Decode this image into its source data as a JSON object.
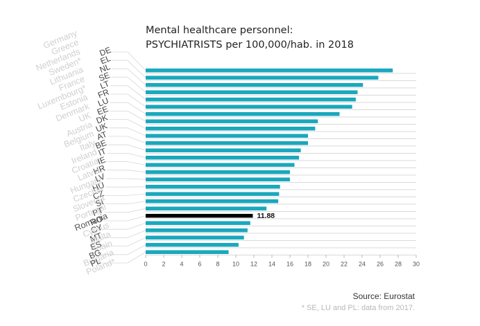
{
  "chart_data": {
    "type": "bar",
    "orientation": "horizontal",
    "title_line1": "Mental healthcare personnel:",
    "title_line2": "PSYCHIATRISTS per 100,000/hab. in 2018",
    "codes": [
      "DE",
      "EL",
      "NL",
      "SE",
      "LT",
      "FR",
      "LU",
      "EE",
      "DK",
      "UK",
      "AT",
      "BE",
      "IT",
      "IE",
      "HR",
      "LV",
      "HU",
      "CZ",
      "SI",
      "PT",
      "RO",
      "CY",
      "MT",
      "ES",
      "BG",
      "PL"
    ],
    "countries": [
      "Germany",
      "Greece",
      "Netherlands",
      "Sweden*",
      "Lithuania",
      "France",
      "Luxembourg*",
      "Estonia",
      "Denmark",
      "UK",
      "Austria",
      "Belgium",
      "Italy",
      "Ireland",
      "Croatia",
      "Latvia",
      "Hungary",
      "Czechia",
      "Slovenia",
      "Portugal",
      "Romania",
      "Cyprus",
      "Malta",
      "Spain",
      "Bulgaria",
      "Poland*"
    ],
    "values": [
      27.4,
      25.8,
      24.1,
      23.5,
      23.3,
      22.9,
      21.5,
      19.1,
      18.8,
      18.0,
      18.0,
      17.2,
      17.0,
      16.5,
      16.0,
      16.0,
      14.9,
      14.8,
      14.7,
      13.4,
      11.88,
      11.6,
      11.3,
      10.9,
      10.3,
      9.2
    ],
    "highlight_code": "RO",
    "highlight_label": "11.88",
    "xlim": [
      0,
      30
    ],
    "x_ticks": [
      "0",
      "2",
      "4",
      "6",
      "8",
      "10",
      "12",
      "14",
      "16",
      "18",
      "20",
      "22",
      "24",
      "26",
      "28",
      "30"
    ],
    "colors": {
      "bar": "#1aa8bd",
      "highlight": "#000000",
      "grid": "#cccccc"
    }
  },
  "source": "Source: Eurostat",
  "footnote": "* SE, LU and PL: data from 2017."
}
